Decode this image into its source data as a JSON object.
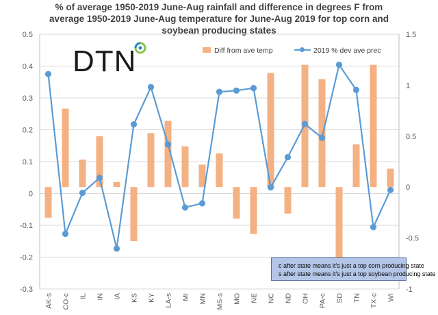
{
  "title": {
    "line1": "%  of average 1950-2019 June-Aug rainfall and difference in degrees F from",
    "line2": "average 1950-2019 June-Aug temperature for June-Aug 2019 for top corn and",
    "line3": "soybean producing states"
  },
  "logo_text": "DTN",
  "note": {
    "line1": "c after state means it's just a top corn producing state",
    "line2": "s after state means it's just a top soybean producing state"
  },
  "colors": {
    "bar": "#f4b183",
    "line": "#5b9bd5",
    "grid": "#d9d9d9",
    "axis_text": "#595959"
  },
  "chart_data": {
    "type": "bar+line",
    "categories": [
      "AK-s",
      "CO-c",
      "IL",
      "IN",
      "IA",
      "KS",
      "KY",
      "LA-s",
      "MI",
      "MN",
      "MS-s",
      "MO",
      "NE",
      "NC",
      "ND",
      "OH",
      "PA-c",
      "SD",
      "TN",
      "TX-c",
      "WI"
    ],
    "left_axis": {
      "min": -0.3,
      "max": 0.5,
      "step": 0.1,
      "ticks": [
        "0.5",
        "0.4",
        "0.3",
        "0.2",
        "0.1",
        "0",
        "-0.1",
        "-0.2",
        "-0.3"
      ]
    },
    "right_axis": {
      "min": -1,
      "max": 1.5,
      "step": 0.5,
      "ticks": [
        "1.5",
        "1",
        "0.5",
        "0",
        "-0.5",
        "-1"
      ]
    },
    "grid": true,
    "legend_position": "top-right",
    "series": [
      {
        "name": "Diff from ave temp",
        "type": "bar",
        "axis": "right",
        "values": [
          -0.3,
          0.77,
          0.27,
          0.5,
          0.05,
          -0.53,
          0.53,
          0.65,
          0.4,
          0.22,
          0.33,
          -0.31,
          -0.46,
          1.12,
          -0.26,
          1.2,
          1.06,
          -0.9,
          0.42,
          1.2,
          0.18
        ]
      },
      {
        "name": "2019 % dev ave prec",
        "type": "line",
        "axis": "left",
        "values": [
          0.375,
          -0.127,
          0.002,
          0.049,
          -0.173,
          0.217,
          0.334,
          0.154,
          -0.044,
          -0.031,
          0.319,
          0.323,
          0.331,
          0.019,
          0.114,
          0.218,
          0.175,
          0.404,
          0.325,
          -0.106,
          0.011
        ]
      }
    ]
  }
}
